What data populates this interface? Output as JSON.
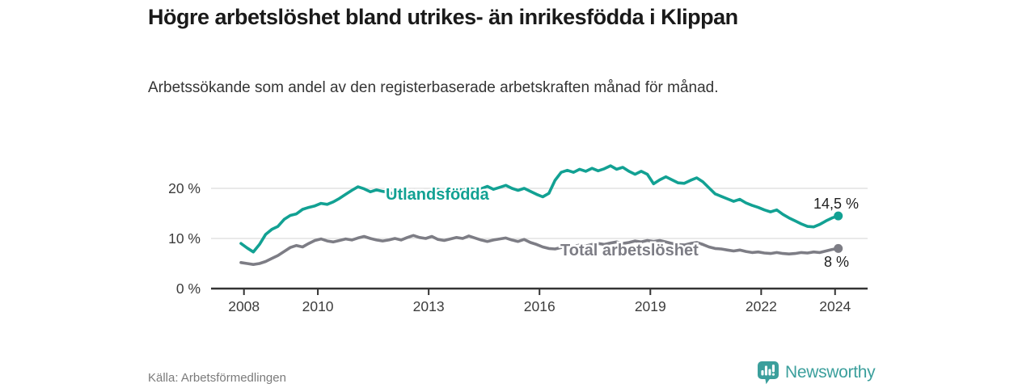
{
  "header": {
    "title": "Högre arbetslöshet bland utrikes- än inrikesfödda i Klippan",
    "subtitle": "Arbetssökande som andel av den registerbaserade arbetskraften månad för månad."
  },
  "chart_data": {
    "type": "line",
    "title": "Högre arbetslöshet bland utrikes- än inrikesfödda i Klippan",
    "y_ticks": [
      {
        "value": 0,
        "label": "0 %"
      },
      {
        "value": 10,
        "label": "10 %"
      },
      {
        "value": 20,
        "label": "20 %"
      }
    ],
    "x_ticks": [
      {
        "value": 2008,
        "label": "2008"
      },
      {
        "value": 2010,
        "label": "2010"
      },
      {
        "value": 2013,
        "label": "2013"
      },
      {
        "value": 2016,
        "label": "2016"
      },
      {
        "value": 2019,
        "label": "2019"
      },
      {
        "value": 2022,
        "label": "2022"
      },
      {
        "value": 2024,
        "label": "2024"
      }
    ],
    "y_range": [
      0,
      26
    ],
    "grid": "horizontal-only",
    "legend_position": "inline-on-lines",
    "series": [
      {
        "name": "Utlandsfödda",
        "color": "#12a193",
        "end_label": "14,5 %",
        "end_value": 14.5,
        "x_start": 2007.92,
        "x_step_years": 0.16667,
        "values": [
          9.0,
          8.1,
          7.3,
          8.8,
          10.8,
          11.8,
          12.4,
          13.8,
          14.6,
          14.9,
          15.8,
          16.2,
          16.5,
          17.0,
          16.8,
          17.3,
          18.0,
          18.8,
          19.6,
          20.3,
          19.9,
          19.3,
          19.7,
          19.4,
          19.2,
          18.8,
          18.5,
          18.9,
          19.4,
          19.1,
          18.9,
          19.4,
          19.8,
          19.2,
          19.6,
          20.0,
          19.6,
          20.1,
          19.7,
          19.9,
          20.4,
          19.8,
          20.2,
          20.6,
          20.0,
          19.6,
          20.0,
          19.4,
          18.8,
          18.3,
          19.0,
          21.6,
          23.2,
          23.6,
          23.2,
          23.8,
          23.4,
          24.0,
          23.5,
          23.9,
          24.5,
          23.8,
          24.2,
          23.4,
          22.8,
          23.4,
          22.8,
          20.9,
          21.7,
          22.3,
          21.7,
          21.1,
          21.0,
          21.6,
          22.1,
          21.3,
          20.1,
          18.9,
          18.4,
          17.9,
          17.4,
          17.8,
          17.1,
          16.6,
          16.2,
          15.7,
          15.3,
          15.7,
          14.8,
          14.1,
          13.5,
          12.9,
          12.4,
          12.3,
          12.8,
          13.5,
          14.1,
          14.5
        ]
      },
      {
        "name": "Total arbetslöshet",
        "color": "#7d7d85",
        "end_label": "8 %",
        "end_value": 8,
        "x_start": 2007.92,
        "x_step_years": 0.16667,
        "values": [
          5.2,
          5.0,
          4.8,
          5.0,
          5.4,
          6.0,
          6.6,
          7.4,
          8.2,
          8.6,
          8.3,
          9.0,
          9.6,
          9.9,
          9.5,
          9.3,
          9.6,
          9.9,
          9.7,
          10.1,
          10.4,
          10.0,
          9.7,
          9.5,
          9.7,
          10.0,
          9.7,
          10.2,
          10.6,
          10.2,
          10.0,
          10.4,
          9.8,
          9.6,
          9.9,
          10.2,
          10.0,
          10.5,
          10.1,
          9.7,
          9.4,
          9.7,
          9.9,
          10.1,
          9.7,
          9.4,
          9.8,
          9.2,
          8.8,
          8.3,
          8.0,
          7.9,
          8.2,
          8.5,
          8.4,
          8.7,
          8.5,
          8.8,
          9.0,
          8.8,
          9.1,
          9.3,
          9.0,
          9.2,
          9.5,
          9.3,
          9.6,
          9.4,
          9.6,
          9.3,
          9.0,
          8.8,
          8.7,
          9.0,
          9.2,
          8.8,
          8.3,
          8.0,
          7.9,
          7.7,
          7.5,
          7.7,
          7.4,
          7.2,
          7.3,
          7.1,
          7.0,
          7.2,
          7.0,
          6.9,
          7.0,
          7.2,
          7.1,
          7.3,
          7.2,
          7.5,
          7.8,
          8.0
        ]
      }
    ]
  },
  "style": {
    "accent_teal": "#12a193",
    "series_gray": "#7d7d85",
    "grid_color": "#dcdcdc",
    "axis_color": "#333333",
    "tick_label_color": "#3c3c3c",
    "annotation_color": "#1f1f1f",
    "brand_teal": "#3b9f9c"
  },
  "footer": {
    "source": "Källa: Arbetsförmedlingen",
    "brand": "Newsworthy"
  }
}
